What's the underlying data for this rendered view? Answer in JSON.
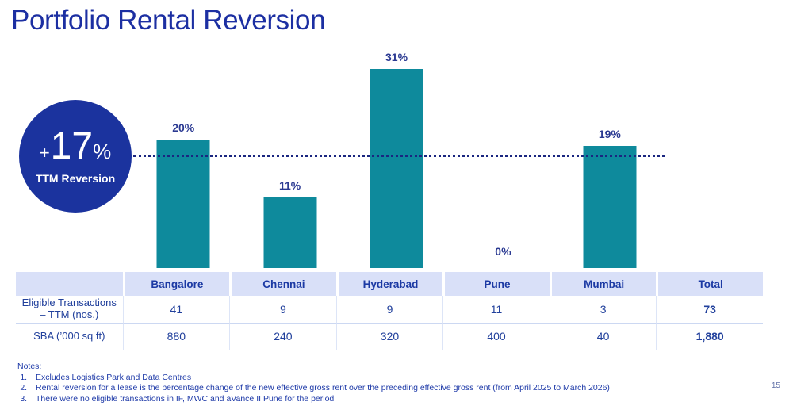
{
  "slide": {
    "title": "Portfolio Rental Reversion",
    "page_number": "15"
  },
  "badge": {
    "plus": "+",
    "value": "17",
    "percent": "%",
    "label": "TTM Reversion"
  },
  "chart_data": {
    "type": "bar",
    "title": "Portfolio Rental Reversion by city",
    "categories": [
      "Bangalore",
      "Chennai",
      "Hyderabad",
      "Pune",
      "Mumbai"
    ],
    "values": [
      20,
      11,
      31,
      0,
      19
    ],
    "data_labels": [
      "20%",
      "11%",
      "31%",
      "0%",
      "19%"
    ],
    "reference_line": {
      "value": 17,
      "label": "+17% TTM Reversion",
      "style": "dotted"
    },
    "ylim": [
      0,
      34
    ],
    "grid": false,
    "bar_color": "#0E8A9C",
    "label_color": "#2B3A92",
    "reference_line_color": "#1A2680"
  },
  "table": {
    "column_headers": [
      "",
      "Bangalore",
      "Chennai",
      "Hyderabad",
      "Pune",
      "Mumbai",
      "Total"
    ],
    "rows": [
      {
        "label": "Eligible Transactions – TTM (nos.)",
        "values": [
          "41",
          "9",
          "9",
          "11",
          "3",
          "73"
        ]
      },
      {
        "label": "SBA (’000 sq ft)",
        "values": [
          "880",
          "240",
          "320",
          "400",
          "40",
          "1,880"
        ]
      }
    ]
  },
  "notes": {
    "heading": "Notes:",
    "items": [
      "Excludes Logistics Park and Data Centres",
      "Rental reversion for a lease is the percentage change of the new effective gross rent over the preceding effective gross rent (from April 2025 to March 2026)",
      "There were no eligible transactions in IF, MWC and aVance II Pune for the period"
    ]
  },
  "colors": {
    "title": "#1C2FA2",
    "badge_circle": "#1B339E",
    "bar": "#0E8A9C",
    "table_header_bg": "#D9E0F8",
    "table_text": "#21409C",
    "notes_text": "#1E3AA8"
  }
}
